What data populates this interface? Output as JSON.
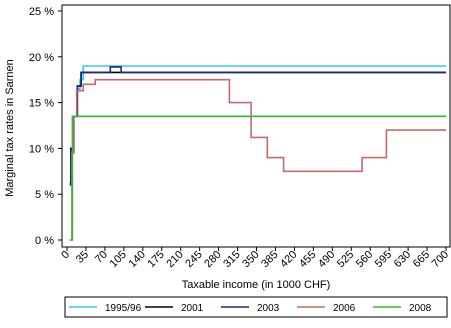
{
  "chart_data": {
    "type": "line",
    "xlabel": "Taxable income (in 1000 CHF)",
    "ylabel": "Marginal tax rates in Sarnen",
    "xlim": [
      0,
      700
    ],
    "ylim": [
      0,
      25
    ],
    "x_ticks": [
      0,
      35,
      70,
      105,
      140,
      175,
      210,
      245,
      280,
      315,
      350,
      385,
      420,
      455,
      490,
      525,
      560,
      595,
      630,
      665,
      700
    ],
    "x_tick_labels": [
      "0",
      "35",
      "70",
      "105",
      "140",
      "175",
      "210",
      "245",
      "280",
      "315",
      "350",
      "385",
      "420",
      "455",
      "490",
      "525",
      "560",
      "595",
      "630",
      "665",
      "700"
    ],
    "y_ticks": [
      0,
      5,
      10,
      15,
      20,
      25
    ],
    "y_tick_labels": [
      "0 %",
      "5 %",
      "10 %",
      "15 %",
      "20 %",
      "25 %"
    ],
    "grid": false,
    "legend_position": "bottom",
    "series": [
      {
        "name": "1995/96",
        "color": "#33ccee",
        "points": [
          [
            5,
            6.5
          ],
          [
            7,
            6.5
          ],
          [
            7,
            10
          ],
          [
            11,
            10
          ],
          [
            11,
            13.5
          ],
          [
            19,
            13.5
          ],
          [
            19,
            16.5
          ],
          [
            24,
            16.5
          ],
          [
            24,
            17.5
          ],
          [
            30,
            17.5
          ],
          [
            30,
            19
          ],
          [
            700,
            19
          ]
        ]
      },
      {
        "name": "2001",
        "color": "#000000",
        "points": [
          [
            5,
            6.2
          ],
          [
            7,
            6.2
          ],
          [
            7,
            10
          ],
          [
            11,
            10
          ],
          [
            11,
            13.5
          ],
          [
            19,
            13.5
          ],
          [
            19,
            16.8
          ],
          [
            26,
            16.8
          ],
          [
            26,
            18.3
          ],
          [
            700,
            18.3
          ]
        ]
      },
      {
        "name": "2003",
        "color": "#1a2a80",
        "points": [
          [
            5,
            6
          ],
          [
            7,
            6
          ],
          [
            7,
            9.8
          ],
          [
            11,
            9.8
          ],
          [
            11,
            13.5
          ],
          [
            19,
            13.5
          ],
          [
            19,
            16.8
          ],
          [
            26,
            16.8
          ],
          [
            26,
            18.3
          ],
          [
            80,
            18.3
          ],
          [
            80,
            18.9
          ],
          [
            100,
            18.9
          ],
          [
            100,
            18.3
          ],
          [
            700,
            18.3
          ]
        ]
      },
      {
        "name": "2006",
        "color": "#c46a6a",
        "points": [
          [
            5,
            0
          ],
          [
            9,
            0
          ],
          [
            9,
            9.5
          ],
          [
            13,
            9.5
          ],
          [
            13,
            13.5
          ],
          [
            18,
            13.5
          ],
          [
            18,
            16.3
          ],
          [
            30,
            16.3
          ],
          [
            30,
            17
          ],
          [
            52,
            17
          ],
          [
            52,
            17.5
          ],
          [
            300,
            17.5
          ],
          [
            300,
            15
          ],
          [
            340,
            15
          ],
          [
            340,
            11.2
          ],
          [
            370,
            11.2
          ],
          [
            370,
            9
          ],
          [
            400,
            9
          ],
          [
            400,
            7.5
          ],
          [
            545,
            7.5
          ],
          [
            545,
            9
          ],
          [
            590,
            9
          ],
          [
            590,
            12
          ],
          [
            700,
            12
          ]
        ]
      },
      {
        "name": "2008",
        "color": "#33bb33",
        "points": [
          [
            5,
            0
          ],
          [
            10,
            0
          ],
          [
            10,
            13.5
          ],
          [
            700,
            13.5
          ]
        ]
      }
    ]
  }
}
